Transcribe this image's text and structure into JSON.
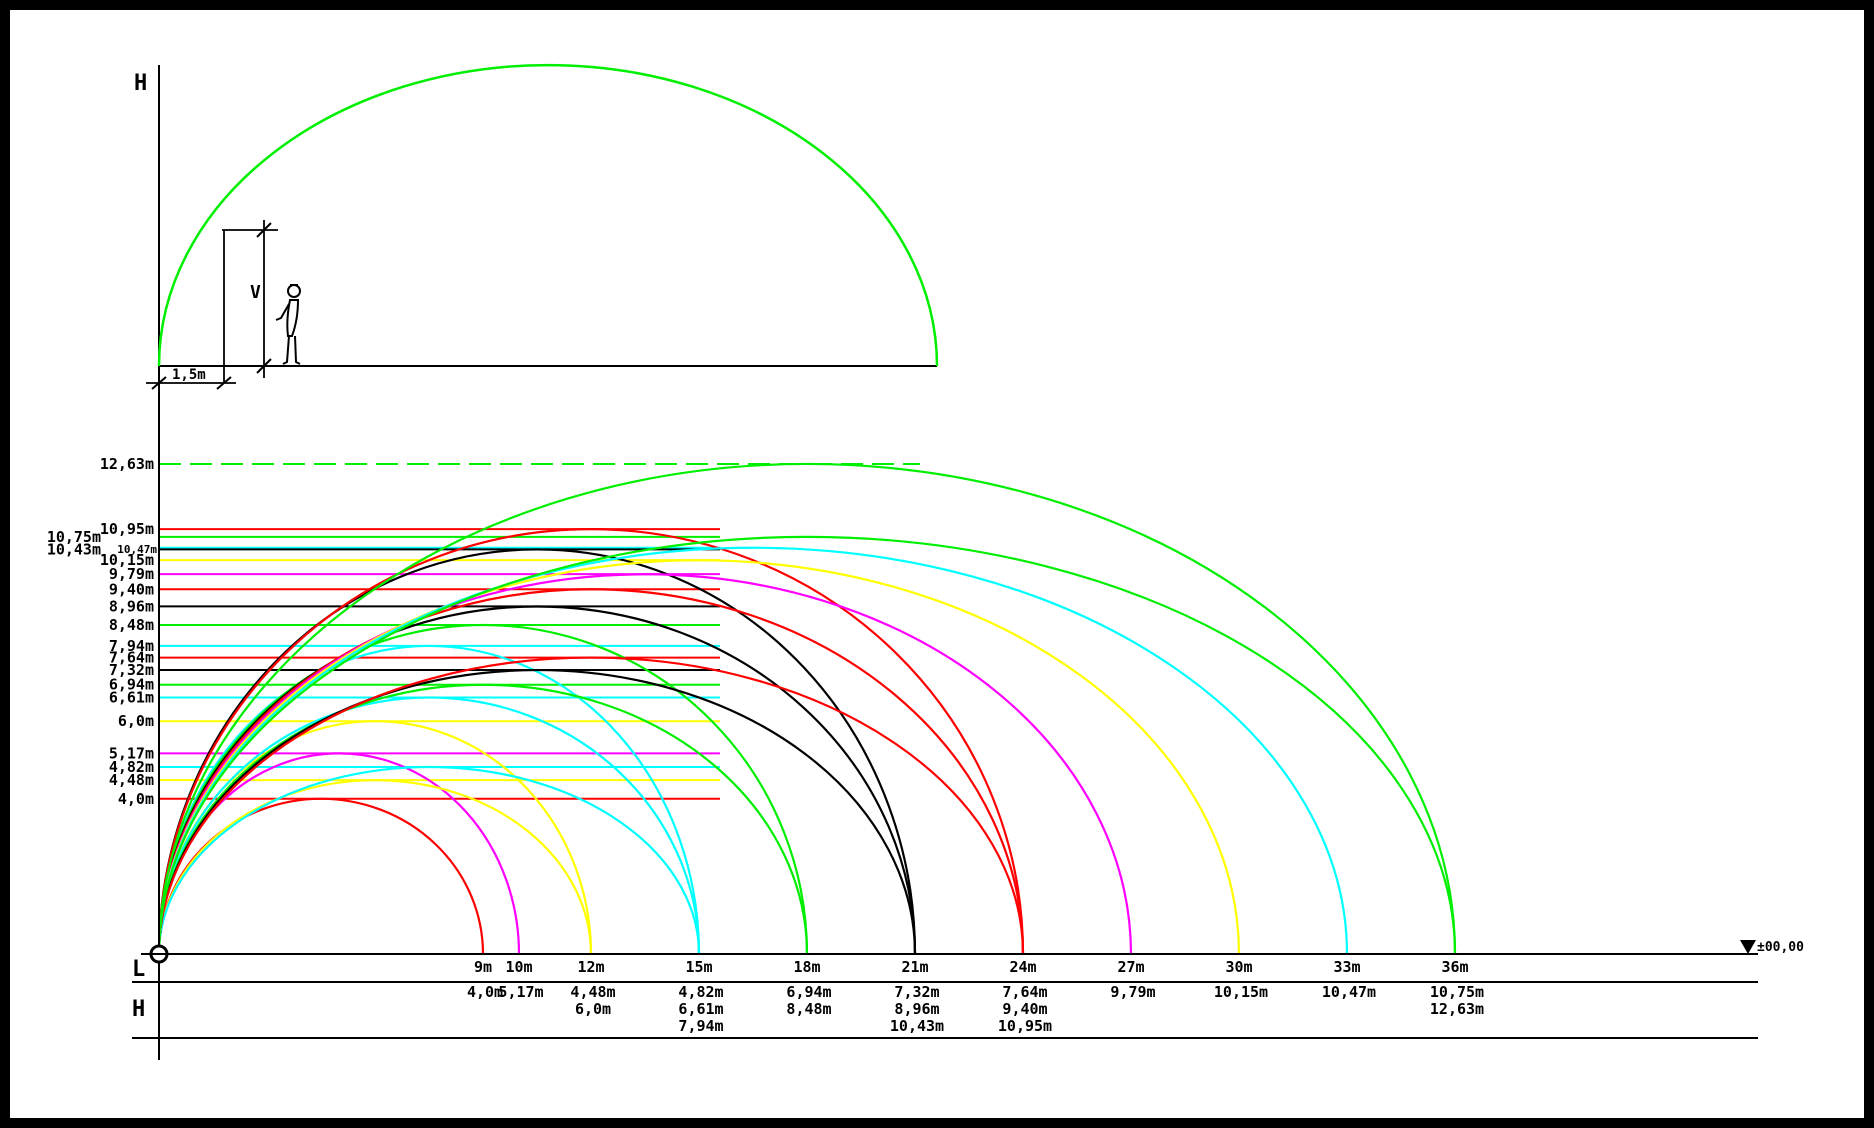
{
  "axes": {
    "h_top": "H",
    "l": "L",
    "h_table": "H",
    "datum": "±00,00"
  },
  "inset": {
    "v": "V",
    "dim": "1,5m"
  },
  "spans": [
    "9m",
    "10m",
    "12m",
    "15m",
    "18m",
    "21m",
    "24m",
    "27m",
    "30m",
    "33m",
    "36m"
  ],
  "table": [
    [
      "4,0m"
    ],
    [
      "5,17m"
    ],
    [
      "4,48m",
      "6,0m"
    ],
    [
      "4,82m",
      "6,61m",
      "7,94m"
    ],
    [
      "6,94m",
      "8,48m"
    ],
    [
      "7,32m",
      "8,96m",
      "10,43m"
    ],
    [
      "7,64m",
      "9,40m",
      "10,95m"
    ],
    [
      "9,79m"
    ],
    [
      "10,15m"
    ],
    [
      "10,47m"
    ],
    [
      "10,75m",
      "12,63m"
    ]
  ],
  "levels": [
    {
      "label": "12,63m",
      "value": 12.63,
      "color": "#00ee00",
      "dashed": true,
      "side": "main"
    },
    {
      "label": "10,95m",
      "value": 10.95,
      "color": "#ff0000",
      "side": "main"
    },
    {
      "label": "10,75m",
      "value": 10.75,
      "color": "#00ee00",
      "side": "left"
    },
    {
      "label": "10,47m",
      "value": 10.47,
      "color": "#00ffff",
      "side": "small"
    },
    {
      "label": "10,43m",
      "value": 10.43,
      "color": "#000000",
      "side": "left"
    },
    {
      "label": "10,15m",
      "value": 10.15,
      "color": "#ffff00",
      "side": "main"
    },
    {
      "label": "9,79m",
      "value": 9.79,
      "color": "#ff00ff",
      "side": "main"
    },
    {
      "label": "9,40m",
      "value": 9.4,
      "color": "#ff0000",
      "side": "main"
    },
    {
      "label": "8,96m",
      "value": 8.96,
      "color": "#000000",
      "side": "main"
    },
    {
      "label": "8,48m",
      "value": 8.48,
      "color": "#00ee00",
      "side": "main"
    },
    {
      "label": "7,94m",
      "value": 7.94,
      "color": "#00ffff",
      "side": "main"
    },
    {
      "label": "7,64m",
      "value": 7.64,
      "color": "#ff0000",
      "side": "main"
    },
    {
      "label": "7,32m",
      "value": 7.32,
      "color": "#000000",
      "side": "main"
    },
    {
      "label": "6,94m",
      "value": 6.94,
      "color": "#00ee00",
      "side": "main"
    },
    {
      "label": "6,61m",
      "value": 6.61,
      "color": "#00ffff",
      "side": "main"
    },
    {
      "label": "6,0m",
      "value": 6.0,
      "color": "#ffff00",
      "side": "main"
    },
    {
      "label": "5,17m",
      "value": 5.17,
      "color": "#ff00ff",
      "side": "main"
    },
    {
      "label": "4,82m",
      "value": 4.82,
      "color": "#00ffff",
      "side": "main"
    },
    {
      "label": "4,48m",
      "value": 4.48,
      "color": "#ffff00",
      "side": "main"
    },
    {
      "label": "4,0m",
      "value": 4.0,
      "color": "#ff0000",
      "side": "main"
    }
  ],
  "arches": [
    {
      "span": 9,
      "height": 4.0,
      "color": "#ff0000"
    },
    {
      "span": 10,
      "height": 5.17,
      "color": "#ff00ff"
    },
    {
      "span": 12,
      "height": 4.48,
      "color": "#ffff00"
    },
    {
      "span": 12,
      "height": 6.0,
      "color": "#ffff00"
    },
    {
      "span": 15,
      "height": 4.82,
      "color": "#00ffff"
    },
    {
      "span": 15,
      "height": 6.61,
      "color": "#00ffff"
    },
    {
      "span": 15,
      "height": 7.94,
      "color": "#00ffff"
    },
    {
      "span": 18,
      "height": 6.94,
      "color": "#00ee00"
    },
    {
      "span": 18,
      "height": 8.48,
      "color": "#00ee00"
    },
    {
      "span": 21,
      "height": 7.32,
      "color": "#000000"
    },
    {
      "span": 21,
      "height": 8.96,
      "color": "#000000"
    },
    {
      "span": 21,
      "height": 10.43,
      "color": "#000000"
    },
    {
      "span": 24,
      "height": 7.64,
      "color": "#ff0000"
    },
    {
      "span": 24,
      "height": 9.4,
      "color": "#ff0000"
    },
    {
      "span": 24,
      "height": 10.95,
      "color": "#ff0000"
    },
    {
      "span": 27,
      "height": 9.79,
      "color": "#ff00ff"
    },
    {
      "span": 30,
      "height": 10.15,
      "color": "#ffff00"
    },
    {
      "span": 33,
      "height": 10.47,
      "color": "#00ffff"
    },
    {
      "span": 36,
      "height": 10.75,
      "color": "#00ee00"
    },
    {
      "span": 36,
      "height": 12.63,
      "color": "#00ee00"
    }
  ]
}
